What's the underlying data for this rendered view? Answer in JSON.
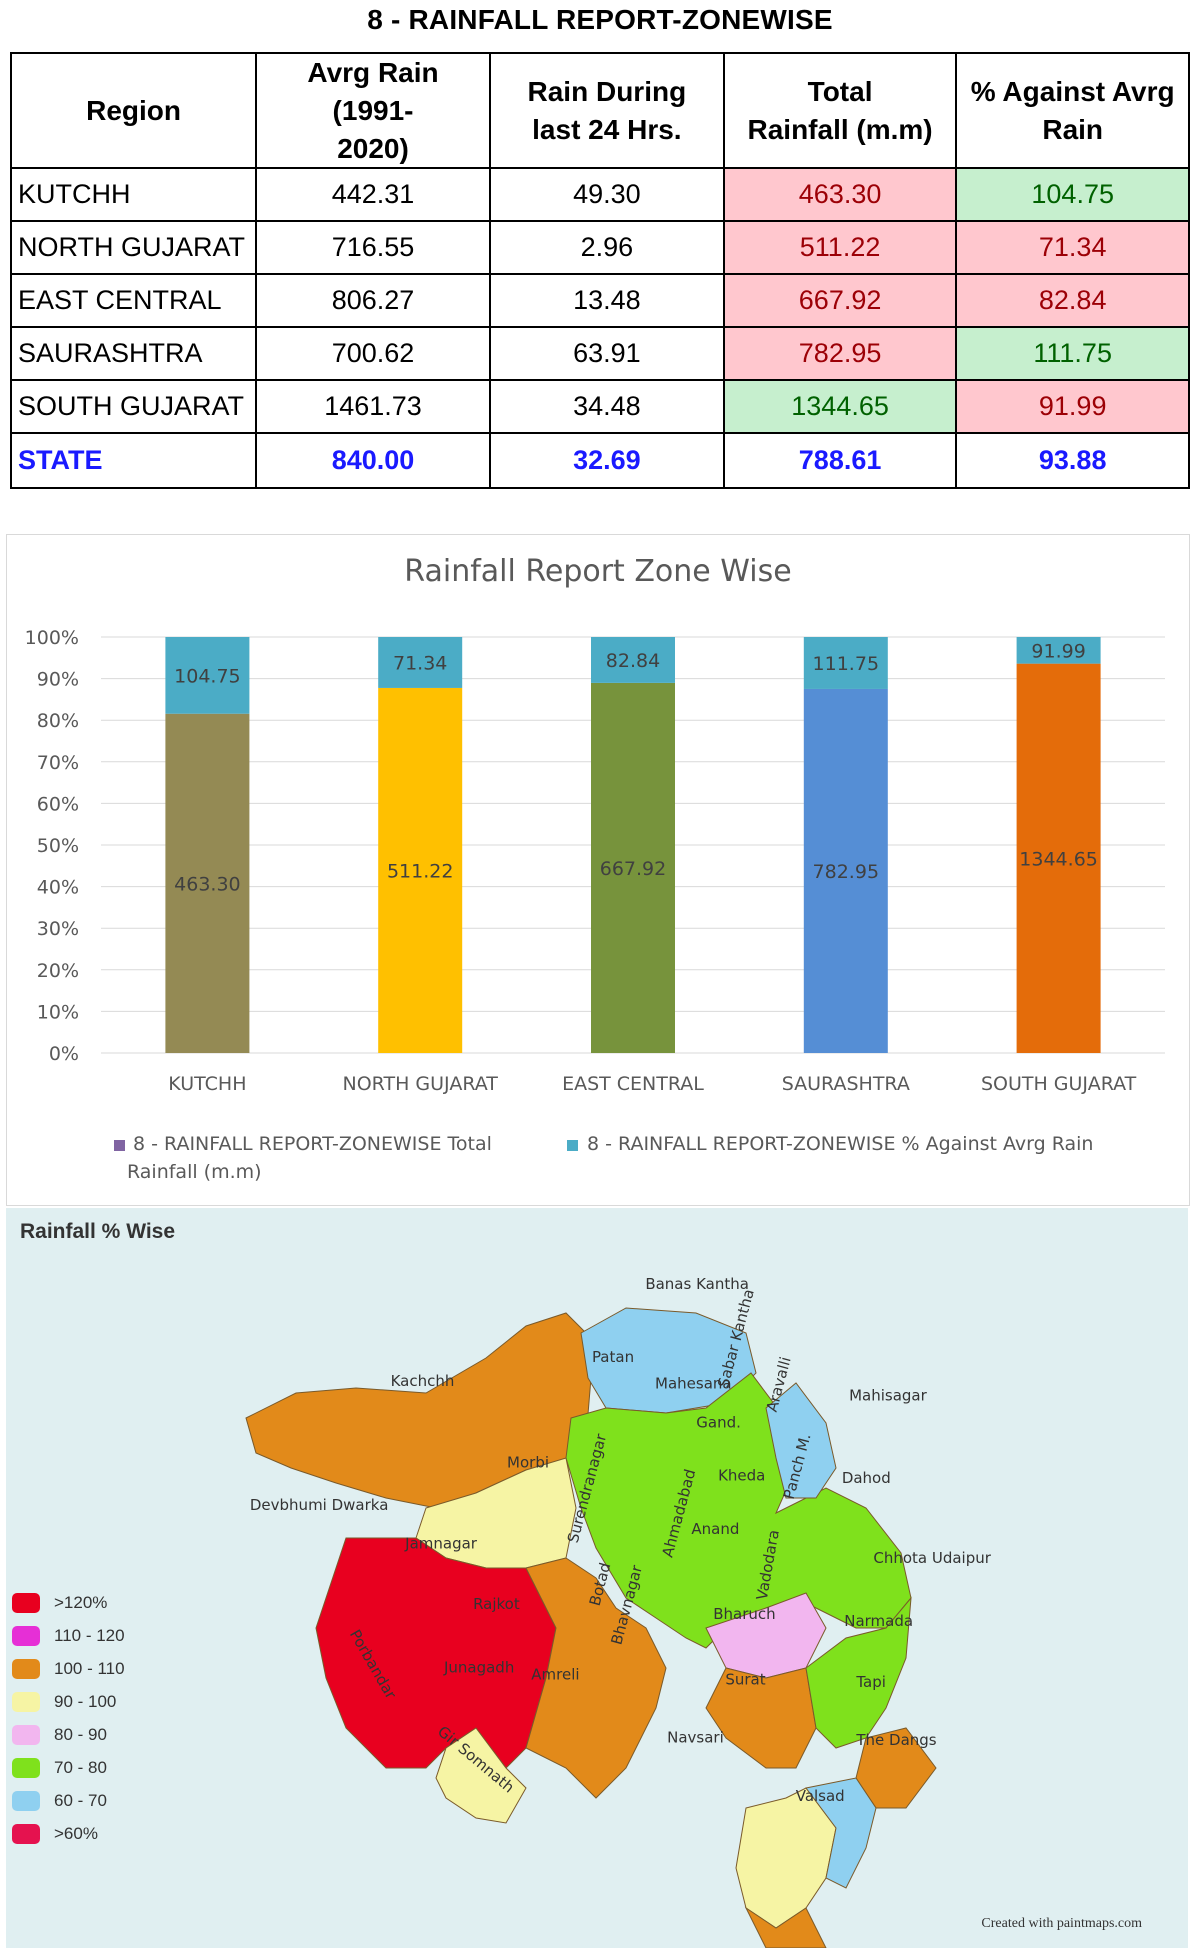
{
  "report": {
    "title": "8 - RAINFALL REPORT-ZONEWISE",
    "headers": [
      "Region",
      "Avrg Rain (1991-\n2020)",
      "Rain During\nlast 24 Hrs.",
      "Total\nRainfall (m.m)",
      "% Against Avrg\nRain"
    ],
    "rows": [
      {
        "region": "KUTCHH",
        "avg": "442.31",
        "last24": "49.30",
        "total": "463.30",
        "pct": "104.75"
      },
      {
        "region": "NORTH GUJARAT",
        "avg": "716.55",
        "last24": "2.96",
        "total": "511.22",
        "pct": "71.34"
      },
      {
        "region": "EAST CENTRAL",
        "avg": "806.27",
        "last24": "13.48",
        "total": "667.92",
        "pct": "82.84"
      },
      {
        "region": "SAURASHTRA",
        "avg": "700.62",
        "last24": "63.91",
        "total": "782.95",
        "pct": "111.75"
      },
      {
        "region": "SOUTH GUJARAT",
        "avg": "1461.73",
        "last24": "34.48",
        "total": "1344.65",
        "pct": "91.99"
      }
    ],
    "state": {
      "region": "STATE",
      "avg": "840.00",
      "last24": "32.69",
      "total": "788.61",
      "pct": "93.88"
    },
    "cell_colors": {
      "red_bg": "#ffc7ce",
      "red_text": "#9c0006",
      "green_bg": "#c6efce",
      "green_text": "#006100",
      "state_text": "#1a1aff"
    },
    "total_cell_status": [
      "red",
      "red",
      "red",
      "red",
      "green"
    ],
    "pct_cell_status": [
      "green",
      "red",
      "red",
      "green",
      "red"
    ]
  },
  "chart_data": {
    "type": "bar",
    "stacking": "percent",
    "title": "Rainfall Report Zone Wise",
    "categories": [
      "KUTCHH",
      "NORTH GUJARAT",
      "EAST CENTRAL",
      "SAURASHTRA",
      "SOUTH GUJARAT"
    ],
    "series": [
      {
        "name": "8 - RAINFALL REPORT-ZONEWISE Total Rainfall (m.m)",
        "values": [
          463.3,
          511.22,
          667.92,
          782.95,
          1344.65
        ],
        "colors": [
          "#948a54",
          "#ffc000",
          "#77933c",
          "#558ed5",
          "#e46c0a"
        ]
      },
      {
        "name": "8 - RAINFALL REPORT-ZONEWISE % Against Avrg Rain",
        "values": [
          104.75,
          71.34,
          82.84,
          111.75,
          91.99
        ],
        "color": "#4bacc6"
      }
    ],
    "legend_swatch_total": "#8064a2",
    "yticks": [
      "0%",
      "10%",
      "20%",
      "30%",
      "40%",
      "50%",
      "60%",
      "70%",
      "80%",
      "90%",
      "100%"
    ],
    "ylim": [
      0,
      100
    ],
    "grid": true,
    "legend": "bottom"
  },
  "map": {
    "title": "Rainfall % Wise",
    "credit": "Created with paintmaps.com",
    "legend": [
      {
        "label": ">120%",
        "color": "#e8001f"
      },
      {
        "label": "110 - 120",
        "color": "#e62fd6"
      },
      {
        "label": "100 - 110",
        "color": "#e28a1a"
      },
      {
        "label": "90 - 100",
        "color": "#f6f4a4"
      },
      {
        "label": "80 - 90",
        "color": "#f2b6ef"
      },
      {
        "label": "70 - 80",
        "color": "#7fe11c"
      },
      {
        "label": "60 - 70",
        "color": "#8fd0f0"
      },
      {
        "label": ">60%",
        "color": "#e5124f"
      }
    ],
    "districts": [
      "Banas Kantha",
      "Patan",
      "Mahesana",
      "Sabar Kantha",
      "Aravalli",
      "Mahisagar",
      "Kachchh",
      "Gand.",
      "Kheda",
      "Panch M.",
      "Dahod",
      "Morbi",
      "Surendranagar",
      "Ahmadabad",
      "Devbhumi Dwarka",
      "Jamnagar",
      "Anand",
      "Vadodara",
      "Chhota Udaipur",
      "Rajkot",
      "Botad",
      "Bharuch",
      "Narmada",
      "Porbandar",
      "Bhavnagar",
      "Junagadh",
      "Amreli",
      "Surat",
      "Tapi",
      "Gir Somnath",
      "Navsari",
      "The Dangs",
      "Valsad"
    ]
  }
}
